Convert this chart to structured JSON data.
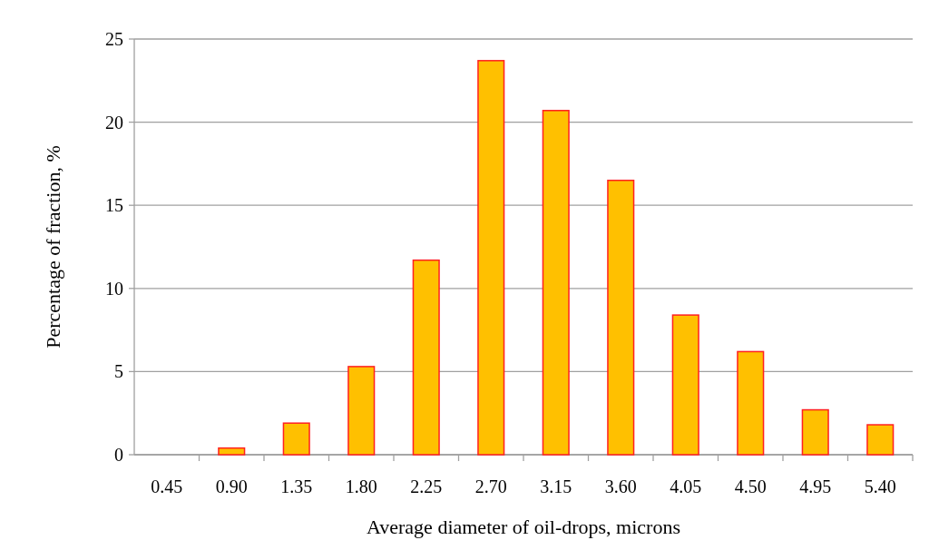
{
  "chart_data": {
    "type": "bar",
    "xlabel": "Average diameter of oil-drops, microns",
    "ylabel": "Percentage of fraction, %",
    "categories": [
      "0.45",
      "0.90",
      "1.35",
      "1.80",
      "2.25",
      "2.70",
      "3.15",
      "3.60",
      "4.05",
      "4.50",
      "4.95",
      "5.40"
    ],
    "values": [
      0,
      0.4,
      1.9,
      5.3,
      11.7,
      23.7,
      20.7,
      16.5,
      8.4,
      6.2,
      2.7,
      1.8
    ],
    "color": "#ffc000",
    "ylim": [
      0,
      25
    ],
    "yticks": [
      0,
      5,
      10,
      15,
      20,
      25
    ],
    "grid": "y"
  }
}
